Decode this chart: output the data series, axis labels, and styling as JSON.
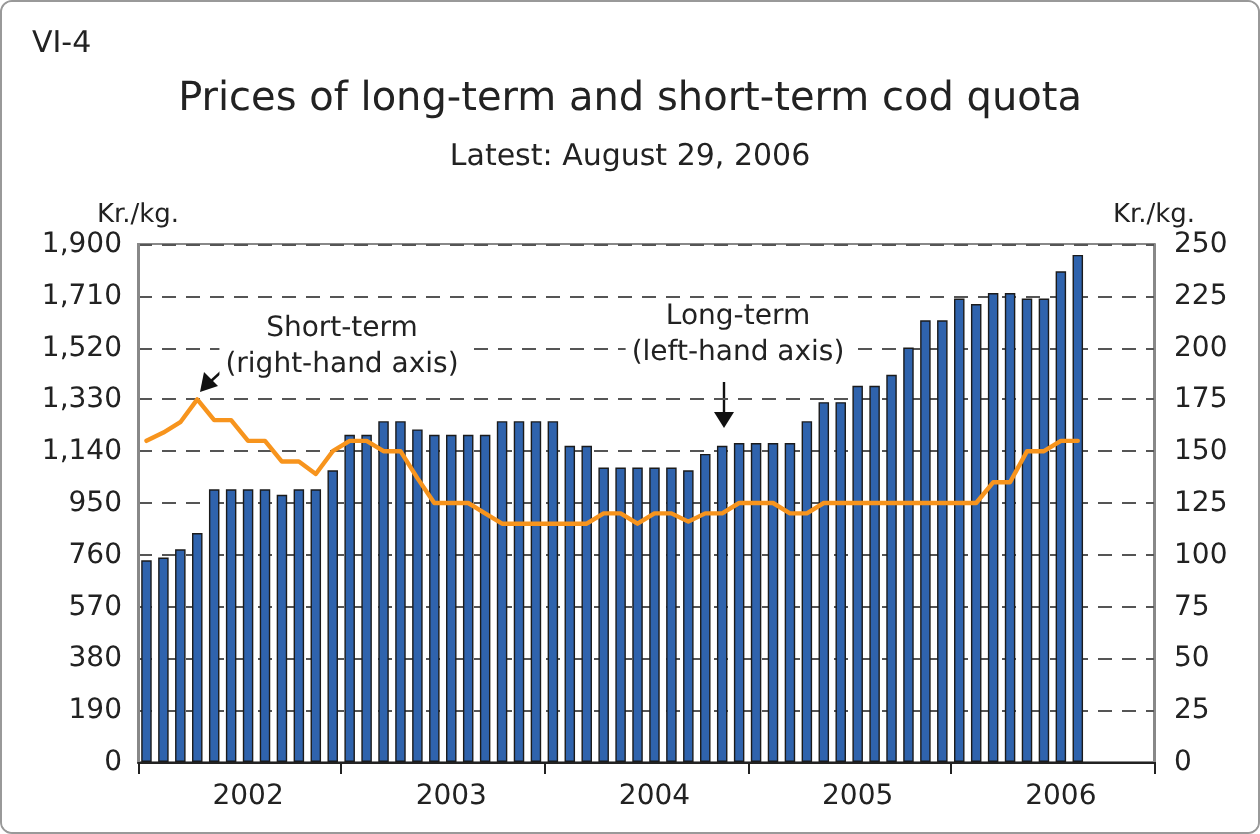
{
  "chart_data": {
    "type": "bar",
    "title": "Prices of long-term and short-term cod quota",
    "subtitle": "Latest: August 29, 2006",
    "ylabel": "Kr./kg.",
    "y2label": "Kr./kg.",
    "annotations": [
      "VI-4",
      "Short-term\n(right-hand axis)",
      "Long-term\n(left-hand axis)"
    ],
    "categories": [
      null,
      null,
      null,
      null,
      null,
      null,
      "2002",
      null,
      null,
      null,
      null,
      null,
      null,
      null,
      null,
      null,
      null,
      null,
      "2003",
      null,
      null,
      null,
      null,
      null,
      null,
      null,
      null,
      null,
      null,
      null,
      "2004",
      null,
      null,
      null,
      null,
      null,
      null,
      null,
      null,
      null,
      null,
      null,
      "2005",
      null,
      null,
      null,
      null,
      null,
      null,
      null,
      null,
      null,
      null,
      null,
      "2006",
      null,
      null,
      null,
      null,
      null
    ],
    "series": [
      {
        "color": "#2f63ad",
        "values": [
          740,
          750,
          780,
          840,
          1000,
          1000,
          1000,
          1000,
          980,
          1000,
          1000,
          1070,
          1200,
          1200,
          1250,
          1250,
          1220,
          1200,
          1200,
          1200,
          1200,
          1250,
          1250,
          1250,
          1250,
          1160,
          1160,
          1080,
          1080,
          1080,
          1080,
          1080,
          1070,
          1130,
          1160,
          1170,
          1170,
          1170,
          1170,
          1250,
          1320,
          1320,
          1380,
          1380,
          1420,
          1520,
          1620,
          1620,
          1700,
          1680,
          1720,
          1720,
          1700,
          1700,
          1800,
          1860,
          null,
          null,
          null,
          null
        ]
      },
      {
        "type": "line",
        "color": "#f7941d",
        "axis": "y2",
        "values": [
          155,
          159,
          164,
          175,
          165,
          165,
          155,
          155,
          145,
          145,
          139,
          150,
          155,
          155,
          150,
          150,
          137,
          125,
          125,
          125,
          120,
          115,
          115,
          115,
          115,
          115,
          115,
          120,
          120,
          115,
          120,
          120,
          116,
          120,
          120,
          125,
          125,
          125,
          120,
          120,
          125,
          125,
          125,
          125,
          125,
          125,
          125,
          125,
          125,
          125,
          135,
          135,
          150,
          150,
          155,
          155,
          null,
          null,
          null,
          null
        ]
      }
    ],
    "ylim": [
      0,
      1900
    ],
    "yticks": [
      0,
      190,
      380,
      570,
      760,
      950,
      {
        "value": 1140,
        "label": "1,140"
      },
      {
        "value": 1330,
        "label": "1,330"
      },
      {
        "value": 1520,
        "label": "1,520"
      },
      {
        "value": 1710,
        "label": "1,710"
      },
      {
        "value": 1900,
        "label": "1,900"
      }
    ],
    "y2lim": [
      0,
      250
    ],
    "y2ticks": [
      0,
      25,
      50,
      75,
      100,
      125,
      150,
      175,
      200,
      225,
      250
    ],
    "grid": "y"
  }
}
